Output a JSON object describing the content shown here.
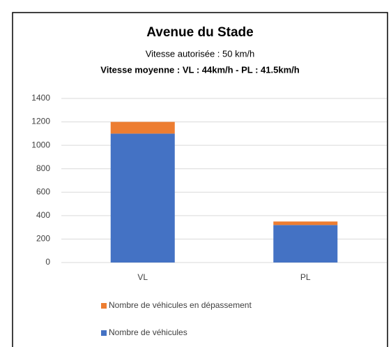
{
  "chart_data": {
    "type": "bar",
    "stacked": true,
    "title": "Avenue du Stade",
    "subtitle": [
      "Vitesse autorisée : 50 km/h",
      "Vitesse moyenne : VL : 44km/h - PL : 41.5km/h"
    ],
    "categories": [
      "VL",
      "PL"
    ],
    "series": [
      {
        "name": "Nombre de véhicules",
        "color": "#4472c4",
        "values": [
          1100,
          320
        ]
      },
      {
        "name": "Nombre de véhicules en dépassement",
        "color": "#ed7d31",
        "values": [
          100,
          30
        ]
      }
    ],
    "ylim": [
      0,
      1400
    ],
    "yticks": [
      0,
      200,
      400,
      600,
      800,
      1000,
      1200,
      1400
    ],
    "grid": true
  }
}
